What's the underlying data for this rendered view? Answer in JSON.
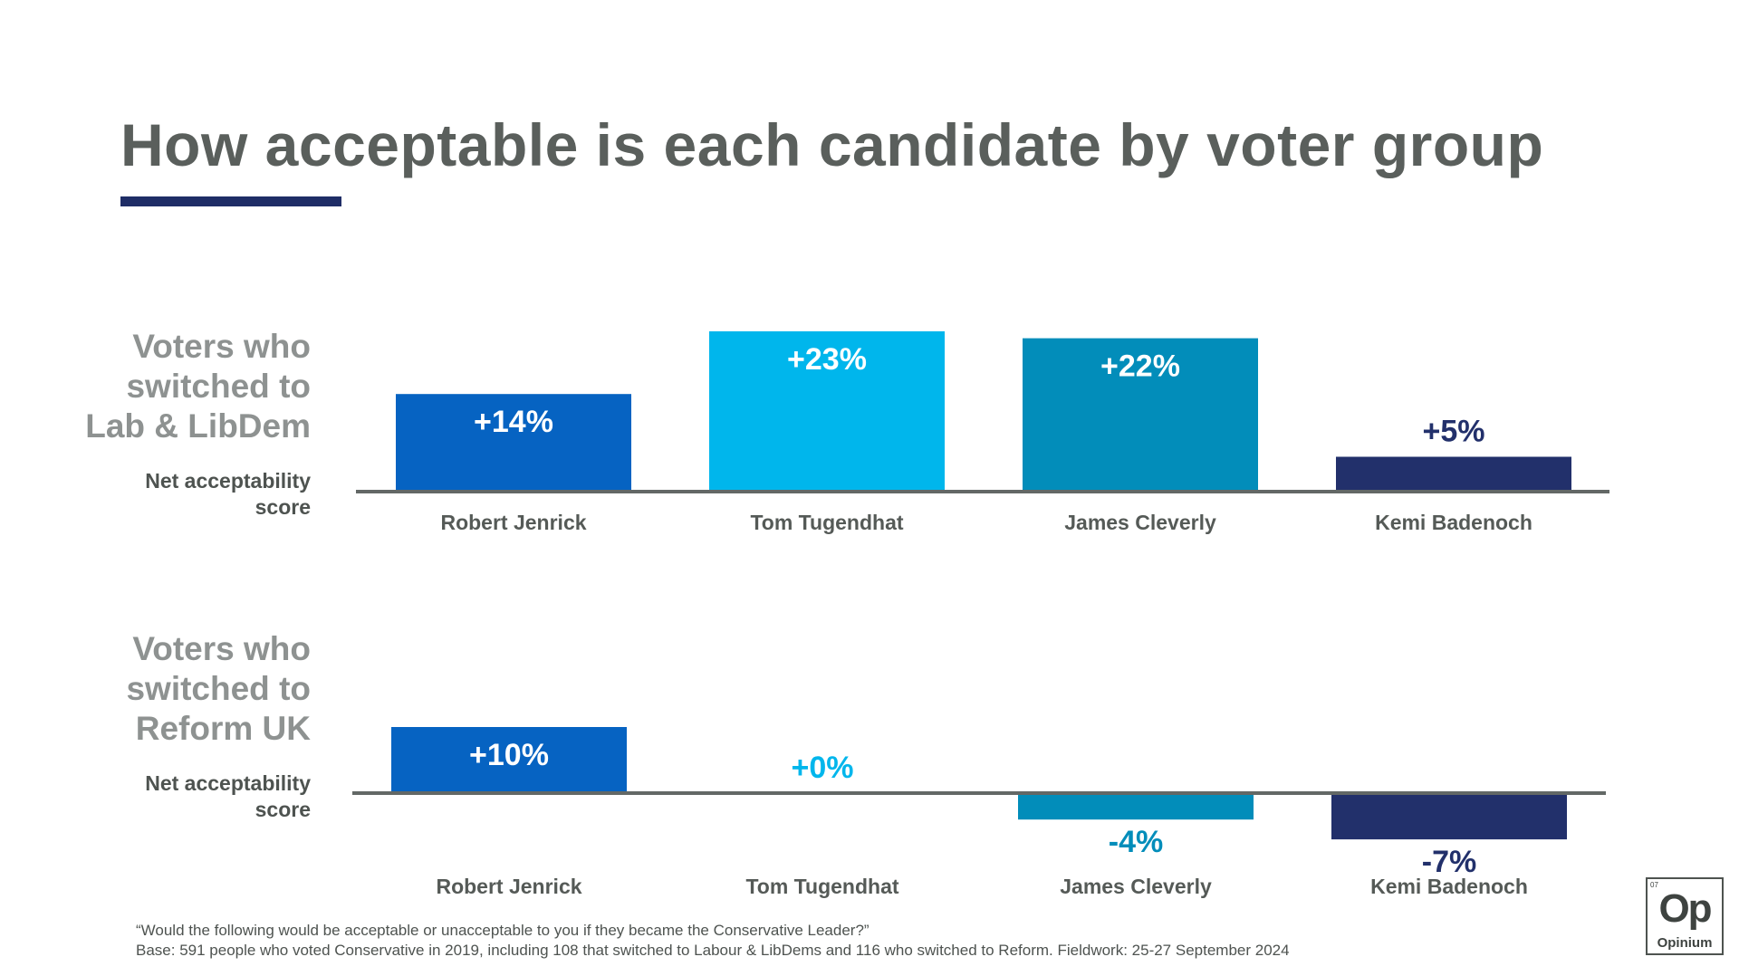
{
  "title": "How acceptable is each candidate by voter group",
  "colors": {
    "title": "#5a5f5c",
    "title_rule": "#1f2d66",
    "series": [
      "#0663c2",
      "#00b6ec",
      "#028dba",
      "#22306b"
    ],
    "label_on_bar": "#ffffff",
    "baseline": "#636866"
  },
  "chart_data": [
    {
      "type": "bar",
      "title": "Voters who switched to Lab & LibDem",
      "group_label_lines": [
        "Voters who",
        "switched to",
        "Lab & LibDem"
      ],
      "ylabel": "Net acceptability score",
      "ylabel_lines": [
        "Net acceptability",
        "score"
      ],
      "categories": [
        "Robert Jenrick",
        "Tom Tugendhat",
        "James Cleverly",
        "Kemi Badenoch"
      ],
      "values": [
        14,
        23,
        22,
        5
      ],
      "data_labels": [
        "+14%",
        "+23%",
        "+22%",
        "+5%"
      ],
      "ylim": [
        -10,
        25
      ],
      "grid": false
    },
    {
      "type": "bar",
      "title": "Voters who switched to Reform UK",
      "group_label_lines": [
        "Voters who",
        "switched to",
        "Reform UK"
      ],
      "ylabel": "Net acceptability score",
      "ylabel_lines": [
        "Net acceptability",
        "score"
      ],
      "categories": [
        "Robert Jenrick",
        "Tom Tugendhat",
        "James Cleverly",
        "Kemi Badenoch"
      ],
      "values": [
        10,
        0,
        -4,
        -7
      ],
      "data_labels": [
        "+10%",
        "+0%",
        "-4%",
        "-7%"
      ],
      "ylim": [
        -10,
        25
      ],
      "grid": false
    }
  ],
  "footnote": {
    "question": "“Would the following would be acceptable or unacceptable to you if they became the Conservative Leader?”",
    "base": "Base: 591 people who voted Conservative in 2019, including 108 that switched to Labour & LibDems and 116 who switched to Reform. Fieldwork: 25-27 September 2024"
  },
  "logo": {
    "number": "07",
    "mark": "Op",
    "name": "Opinium"
  }
}
